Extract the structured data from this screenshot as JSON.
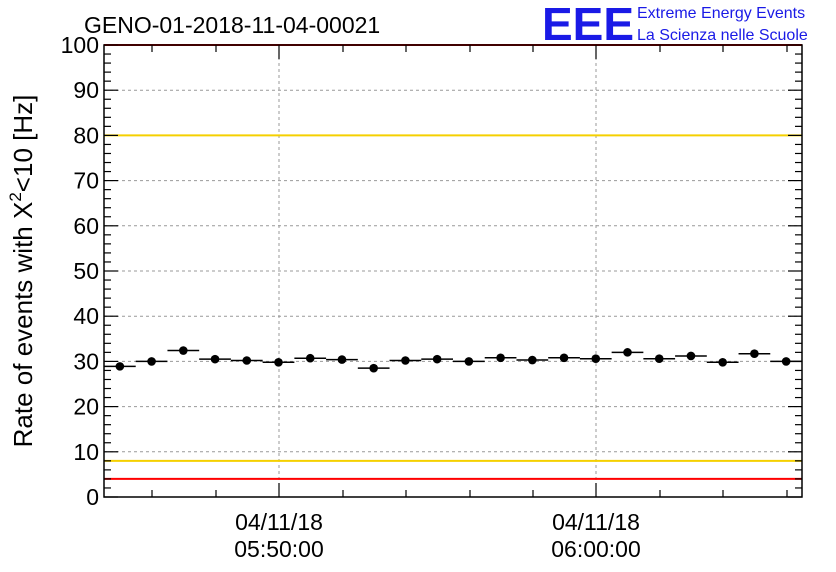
{
  "chart_data": {
    "type": "scatter",
    "title": "GENO-01-2018-11-04-00021",
    "ylabel": {
      "prefix": "Rate of events with X",
      "superscript": "2",
      "suffix": "<10 [Hz]"
    },
    "xlabel": "",
    "ylim": [
      0,
      100
    ],
    "yticks": [
      "0",
      "10",
      "20",
      "30",
      "40",
      "50",
      "60",
      "70",
      "80",
      "90",
      "100"
    ],
    "xticks": [
      {
        "date": "04/11/18",
        "time": "05:50:00"
      },
      {
        "date": "04/11/18",
        "time": "06:00:00"
      }
    ],
    "grid": true,
    "reference_lines": [
      {
        "y": 80,
        "color": "#f5d000"
      },
      {
        "y": 8,
        "color": "#f5d000"
      },
      {
        "y": 100,
        "color": "#ff0000"
      },
      {
        "y": 4,
        "color": "#ff0000"
      }
    ],
    "marker_color": "#000000",
    "points": [
      28.9,
      30.0,
      32.4,
      30.5,
      30.2,
      29.8,
      30.7,
      30.4,
      28.5,
      30.2,
      30.5,
      30.0,
      30.8,
      30.3,
      30.8,
      30.6,
      32.0,
      30.6,
      31.2,
      29.8,
      31.7,
      30.0
    ]
  },
  "logo": {
    "mark": "EEE",
    "line1": "Extreme Energy Events",
    "line2": "La Scienza nelle Scuole"
  }
}
